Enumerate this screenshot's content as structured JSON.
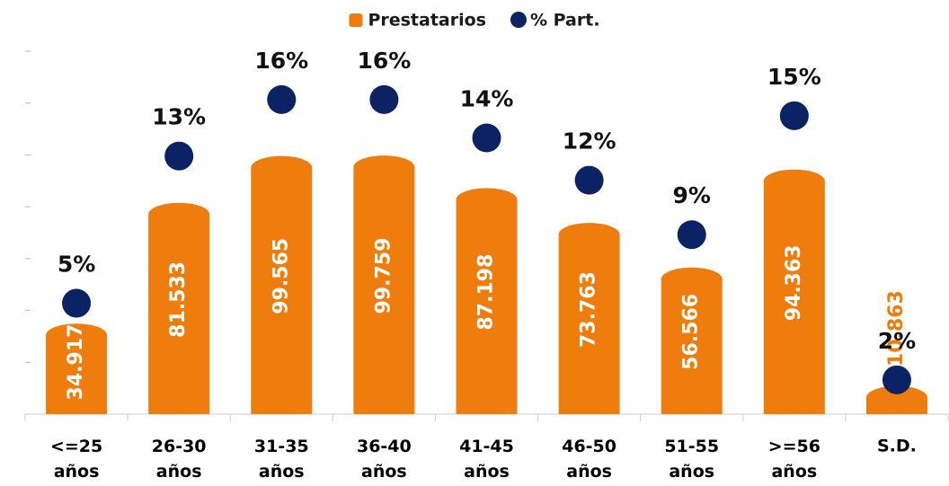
{
  "chart_data": {
    "type": "bar",
    "categories": [
      "<=25 años",
      "26-30 años",
      "31-35 años",
      "36-40 años",
      "41-45 años",
      "46-50 años",
      "51-55 años",
      ">=56 años",
      "S.D."
    ],
    "series": [
      {
        "name": "Prestatarios",
        "type": "bar",
        "color": "#ee7d0e",
        "values": [
          34917,
          81533,
          99565,
          99759,
          87198,
          73763,
          56566,
          94363,
          10863
        ],
        "value_labels": [
          "34.917",
          "81.533",
          "99.565",
          "99.759",
          "87.198",
          "73.763",
          "56.566",
          "94.363",
          "10.863"
        ]
      },
      {
        "name": "% Part.",
        "type": "scatter",
        "axis": "y2",
        "color": "#0b2265",
        "values": [
          5.5,
          12.8,
          15.6,
          15.6,
          13.7,
          11.6,
          8.9,
          14.8,
          1.7
        ],
        "value_labels": [
          "5%",
          "13%",
          "16%",
          "16%",
          "14%",
          "12%",
          "9%",
          "15%",
          "2%"
        ]
      }
    ],
    "ylim": [
      0,
      140000
    ],
    "yticks": [
      0,
      20000,
      40000,
      60000,
      80000,
      100000,
      120000,
      140000
    ],
    "y2lim": [
      0,
      18
    ],
    "legend": "top"
  }
}
